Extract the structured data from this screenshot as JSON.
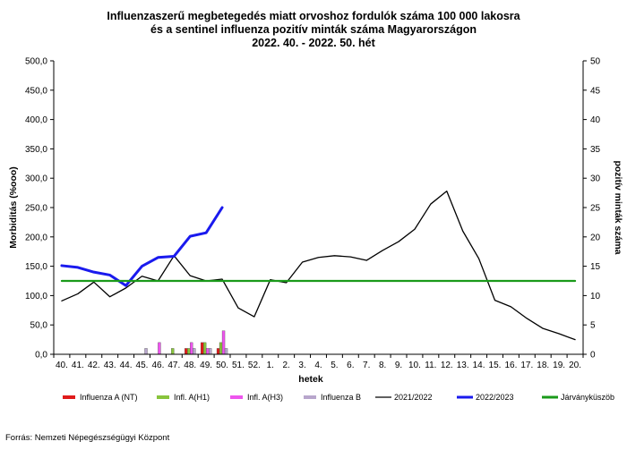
{
  "chart_data": {
    "type": "line",
    "title_lines": [
      "Influenzaszerű megbetegedés miatt orvoshoz fordulók száma 100 000 lakosra",
      "és a sentinel influenza pozitív minták száma Magyarországon",
      "2022. 40. - 2022. 50. hét"
    ],
    "xlabel": "hetek",
    "ylabel": "Morbiditás (%ooo)",
    "y2label": "pozitív minták száma",
    "ylim": [
      0,
      500
    ],
    "y2lim": [
      0,
      50
    ],
    "y_ticks": [
      "0,0",
      "50,0",
      "100,0",
      "150,0",
      "200,0",
      "250,0",
      "300,0",
      "350,0",
      "400,0",
      "450,0",
      "500,0"
    ],
    "y2_ticks": [
      "0",
      "5",
      "10",
      "15",
      "20",
      "25",
      "30",
      "35",
      "40",
      "45",
      "50"
    ],
    "categories": [
      "40.",
      "41.",
      "42.",
      "43.",
      "44.",
      "45.",
      "46.",
      "47.",
      "48.",
      "49.",
      "50.",
      "51.",
      "52.",
      "1.",
      "2.",
      "3.",
      "4.",
      "5.",
      "6.",
      "7.",
      "8.",
      "9.",
      "10.",
      "11.",
      "12.",
      "13.",
      "14.",
      "15.",
      "16.",
      "17.",
      "18.",
      "19.",
      "20."
    ],
    "grid": false,
    "legend_position": "bottom",
    "lines": [
      {
        "name": "2021/2022",
        "color": "#000000",
        "width": 1.3,
        "values": [
          91,
          103,
          123,
          98,
          113,
          133,
          125,
          168,
          134,
          125,
          128,
          79,
          64,
          127,
          122,
          157,
          165,
          168,
          166,
          160,
          177,
          192,
          213,
          256,
          278,
          210,
          163,
          92,
          81,
          61,
          44,
          35,
          25
        ]
      },
      {
        "name": "2022/2023",
        "color": "#1a1aee",
        "width": 3,
        "values": [
          151,
          148,
          140,
          135,
          117,
          150,
          165,
          167,
          201,
          207,
          250
        ]
      },
      {
        "name": "Járványküszöb",
        "color": "#1a9a1a",
        "width": 2.2,
        "values": [
          125,
          125,
          125,
          125,
          125,
          125,
          125,
          125,
          125,
          125,
          125,
          125,
          125,
          125,
          125,
          125,
          125,
          125,
          125,
          125,
          125,
          125,
          125,
          125,
          125,
          125,
          125,
          125,
          125,
          125,
          125,
          125,
          125
        ]
      }
    ],
    "bar_series": [
      {
        "name": "Influenza A (NT)",
        "color": "#e01b1b",
        "values": [
          0,
          0,
          0,
          0,
          0,
          0,
          0,
          0,
          1,
          2,
          1
        ]
      },
      {
        "name": "Infl. A(H1)",
        "color": "#88c43c",
        "values": [
          0,
          0,
          0,
          0,
          0,
          0,
          0,
          1,
          1,
          2,
          2
        ]
      },
      {
        "name": "Infl. A(H3)",
        "color": "#ee55ee",
        "values": [
          0,
          0,
          0,
          0,
          0,
          0,
          2,
          0,
          2,
          1,
          4
        ]
      },
      {
        "name": "Influenza B",
        "color": "#b8a6cc",
        "values": [
          0,
          0,
          0,
          0,
          0,
          1,
          0,
          0,
          1,
          1,
          1
        ]
      }
    ],
    "legend": [
      {
        "label": "Influenza A (NT)",
        "kind": "box",
        "color": "#e01b1b"
      },
      {
        "label": "Infl. A(H1)",
        "kind": "box",
        "color": "#88c43c"
      },
      {
        "label": "Infl. A(H3)",
        "kind": "box",
        "color": "#ee55ee"
      },
      {
        "label": "Influenza B",
        "kind": "box",
        "color": "#b8a6cc"
      },
      {
        "label": "2021/2022",
        "kind": "line",
        "color": "#000000"
      },
      {
        "label": "2022/2023",
        "kind": "line",
        "color": "#1a1aee"
      },
      {
        "label": "Járványküszöb",
        "kind": "line",
        "color": "#1a9a1a"
      }
    ]
  },
  "source": "Forrás: Nemzeti Népegészségügyi Központ"
}
